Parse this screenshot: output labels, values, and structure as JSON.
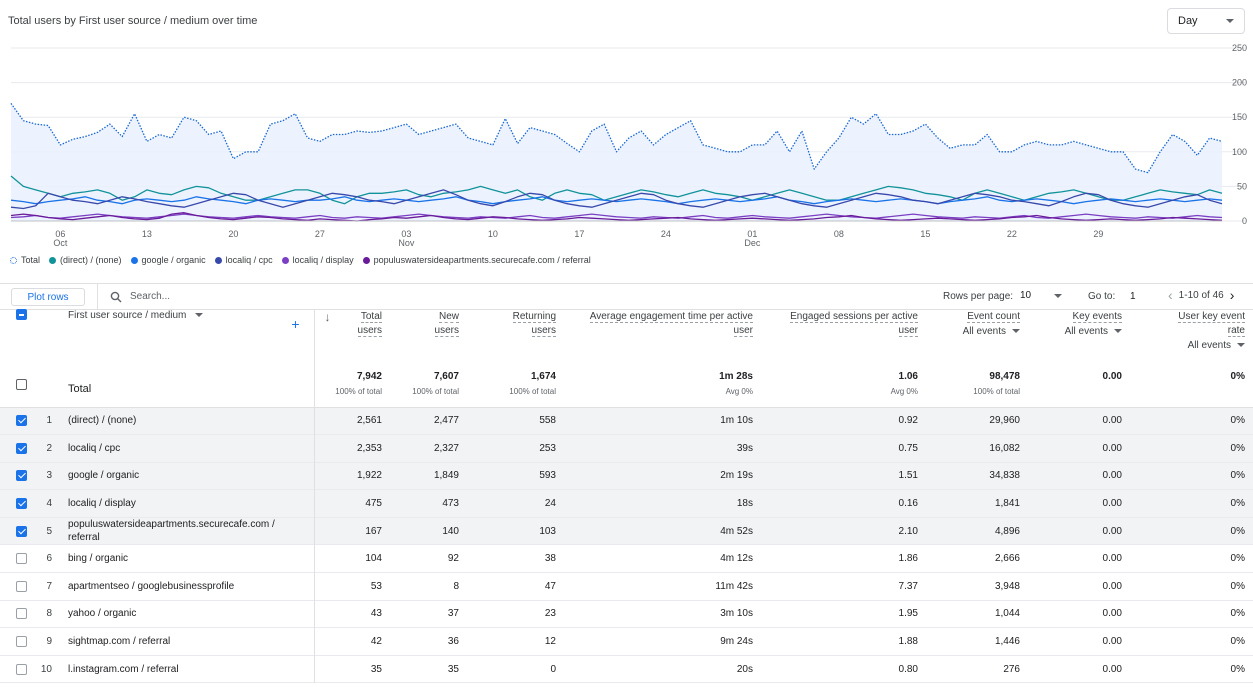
{
  "chart": {
    "title": "Total users by First user source / medium over time",
    "granularity": "Day",
    "x_ticks": [
      {
        "day": "06",
        "month": "Oct"
      },
      {
        "day": "13",
        "month": ""
      },
      {
        "day": "20",
        "month": ""
      },
      {
        "day": "27",
        "month": ""
      },
      {
        "day": "03",
        "month": "Nov"
      },
      {
        "day": "10",
        "month": ""
      },
      {
        "day": "17",
        "month": ""
      },
      {
        "day": "24",
        "month": ""
      },
      {
        "day": "01",
        "month": "Dec"
      },
      {
        "day": "08",
        "month": ""
      },
      {
        "day": "15",
        "month": ""
      },
      {
        "day": "22",
        "month": ""
      },
      {
        "day": "29",
        "month": ""
      }
    ],
    "y_ticks": [
      "250",
      "200",
      "150",
      "100",
      "50",
      "0"
    ]
  },
  "chart_data": {
    "type": "line",
    "ylim": [
      0,
      250
    ],
    "x_start": "Oct 02",
    "x_end": "Dec 31",
    "series": [
      {
        "name": "Total",
        "color": "#1967d2",
        "style": "dotted",
        "fill": true,
        "values": [
          170,
          145,
          140,
          138,
          110,
          118,
          122,
          128,
          140,
          122,
          155,
          115,
          125,
          120,
          150,
          145,
          125,
          130,
          90,
          100,
          100,
          140,
          145,
          155,
          120,
          115,
          125,
          125,
          130,
          128,
          130,
          135,
          140,
          125,
          130,
          135,
          140,
          120,
          115,
          110,
          148,
          112,
          135,
          130,
          125,
          112,
          100,
          130,
          140,
          100,
          120,
          130,
          110,
          125,
          135,
          145,
          110,
          105,
          100,
          100,
          110,
          110,
          130,
          100,
          130,
          75,
          100,
          120,
          150,
          140,
          155,
          125,
          125,
          130,
          140,
          120,
          105,
          110,
          110,
          125,
          100,
          100,
          110,
          115,
          110,
          110,
          115,
          110,
          105,
          100,
          100,
          75,
          70,
          100,
          125,
          115,
          95,
          120,
          115
        ]
      },
      {
        "name": "(direct) / (none)",
        "color": "#12939a",
        "style": "solid",
        "values": [
          65,
          50,
          45,
          40,
          35,
          40,
          42,
          45,
          40,
          30,
          35,
          45,
          40,
          38,
          45,
          50,
          48,
          40,
          35,
          30,
          30,
          35,
          40,
          45,
          45,
          40,
          30,
          25,
          35,
          40,
          40,
          42,
          45,
          38,
          35,
          40,
          42,
          45,
          50,
          45,
          40,
          45,
          35,
          30,
          40,
          45,
          40,
          38,
          30,
          35,
          40,
          45,
          42,
          38,
          35,
          40,
          45,
          40,
          38,
          35,
          30,
          35,
          40,
          45,
          40,
          35,
          30,
          30,
          35,
          40,
          45,
          50,
          48,
          45,
          40,
          38,
          35,
          30,
          40,
          45,
          40,
          35,
          30,
          35,
          40,
          42,
          45,
          40,
          35,
          30,
          30,
          35,
          40,
          45,
          42,
          40,
          38,
          45,
          40
        ]
      },
      {
        "name": "google / organic",
        "color": "#1a73e8",
        "style": "solid",
        "values": [
          30,
          28,
          25,
          28,
          30,
          32,
          35,
          30,
          28,
          25,
          30,
          32,
          30,
          28,
          30,
          35,
          32,
          30,
          28,
          25,
          30,
          32,
          30,
          28,
          30,
          30,
          32,
          35,
          30,
          28,
          30,
          32,
          30,
          28,
          30,
          32,
          35,
          30,
          28,
          25,
          28,
          30,
          32,
          35,
          30,
          28,
          30,
          32,
          30,
          28,
          30,
          32,
          30,
          28,
          25,
          28,
          30,
          32,
          30,
          28,
          30,
          32,
          35,
          30,
          28,
          25,
          28,
          30,
          32,
          30,
          28,
          30,
          32,
          30,
          28,
          25,
          28,
          30,
          32,
          35,
          30,
          28,
          30,
          32,
          30,
          28,
          25,
          28,
          30,
          32,
          30,
          28,
          30,
          32,
          30,
          28,
          30,
          32,
          30
        ]
      },
      {
        "name": "localiq / cpc",
        "color": "#3949ab",
        "style": "solid",
        "values": [
          20,
          18,
          22,
          40,
          35,
          30,
          28,
          25,
          30,
          35,
          32,
          28,
          25,
          22,
          20,
          25,
          30,
          35,
          40,
          38,
          30,
          25,
          20,
          25,
          30,
          35,
          40,
          38,
          35,
          30,
          28,
          25,
          30,
          35,
          40,
          45,
          38,
          30,
          25,
          22,
          28,
          35,
          40,
          38,
          30,
          25,
          22,
          20,
          25,
          30,
          35,
          40,
          38,
          30,
          25,
          22,
          20,
          25,
          30,
          35,
          38,
          40,
          35,
          30,
          25,
          22,
          20,
          25,
          30,
          35,
          40,
          38,
          35,
          30,
          28,
          25,
          30,
          35,
          40,
          38,
          35,
          30,
          28,
          25,
          22,
          28,
          35,
          40,
          38,
          30,
          25,
          22,
          20,
          25,
          30,
          35,
          38,
          30,
          25
        ]
      },
      {
        "name": "localiq / display",
        "color": "#7b3fc4",
        "style": "solid",
        "values": [
          5,
          6,
          8,
          5,
          4,
          6,
          8,
          10,
          8,
          6,
          5,
          4,
          6,
          8,
          10,
          8,
          6,
          5,
          4,
          6,
          8,
          6,
          5,
          4,
          6,
          8,
          5,
          4,
          6,
          5,
          4,
          6,
          8,
          10,
          8,
          6,
          5,
          4,
          6,
          5,
          4,
          6,
          8,
          5,
          4,
          6,
          8,
          10,
          8,
          6,
          5,
          4,
          6,
          5,
          4,
          6,
          8,
          5,
          4,
          6,
          8,
          6,
          5,
          4,
          6,
          8,
          10,
          8,
          6,
          5,
          4,
          6,
          8,
          10,
          8,
          6,
          5,
          4,
          6,
          5,
          4,
          6,
          8,
          5,
          4,
          6,
          8,
          10,
          8,
          6,
          5,
          4,
          6,
          5,
          4,
          6,
          8,
          6,
          5
        ]
      },
      {
        "name": "populuswatersideapartments.securecafe.com / referral",
        "color": "#6a1b9a",
        "style": "solid",
        "values": [
          8,
          10,
          8,
          5,
          3,
          2,
          4,
          6,
          8,
          5,
          3,
          2,
          4,
          10,
          12,
          8,
          5,
          3,
          2,
          4,
          6,
          5,
          3,
          2,
          1,
          3,
          2,
          1,
          0,
          2,
          3,
          5,
          4,
          6,
          8,
          5,
          3,
          2,
          4,
          6,
          5,
          3,
          2,
          1,
          2,
          3,
          5,
          4,
          3,
          2,
          1,
          2,
          3,
          4,
          5,
          3,
          2,
          1,
          2,
          3,
          4,
          3,
          2,
          1,
          2,
          3,
          5,
          6,
          8,
          5,
          3,
          2,
          1,
          2,
          3,
          4,
          3,
          2,
          1,
          2,
          3,
          5,
          6,
          8,
          5,
          3,
          2,
          1,
          2,
          3,
          2,
          1,
          2,
          3,
          5,
          4,
          3,
          2,
          1
        ]
      }
    ]
  },
  "toolbar": {
    "plot_rows_label": "Plot rows",
    "search_placeholder": "Search...",
    "rows_per_page_label": "Rows per page:",
    "rows_per_page_value": "10",
    "goto_label": "Go to:",
    "goto_value": "1",
    "page_range": "1-10 of 46"
  },
  "table": {
    "dimension_header": "First user source / medium",
    "columns": [
      {
        "line1": "Total",
        "line2": "users",
        "control": ""
      },
      {
        "line1": "New",
        "line2": "users",
        "control": ""
      },
      {
        "line1": "Returning",
        "line2": "users",
        "control": ""
      },
      {
        "line1": "Average engagement time per active",
        "line2": "user",
        "control": ""
      },
      {
        "line1": "Engaged sessions per active",
        "line2": "user",
        "control": ""
      },
      {
        "line1": "Event count",
        "line2": "",
        "control": "All events"
      },
      {
        "line1": "Key events",
        "line2": "",
        "control": "All events"
      },
      {
        "line1": "User key event",
        "line2": "rate",
        "control": "All events"
      }
    ],
    "total": {
      "label": "Total",
      "values": [
        "7,942",
        "7,607",
        "1,674",
        "1m 28s",
        "1.06",
        "98,478",
        "0.00",
        "0%"
      ],
      "subs": [
        "100% of total",
        "100% of total",
        "100% of total",
        "Avg 0%",
        "Avg 0%",
        "100% of total",
        "",
        ""
      ]
    },
    "rows": [
      {
        "idx": "1",
        "name": "(direct) / (none)",
        "checked": true,
        "values": [
          "2,561",
          "2,477",
          "558",
          "1m 10s",
          "0.92",
          "29,960",
          "0.00",
          "0%"
        ]
      },
      {
        "idx": "2",
        "name": "localiq / cpc",
        "checked": true,
        "values": [
          "2,353",
          "2,327",
          "253",
          "39s",
          "0.75",
          "16,082",
          "0.00",
          "0%"
        ]
      },
      {
        "idx": "3",
        "name": "google / organic",
        "checked": true,
        "values": [
          "1,922",
          "1,849",
          "593",
          "2m 19s",
          "1.51",
          "34,838",
          "0.00",
          "0%"
        ]
      },
      {
        "idx": "4",
        "name": "localiq / display",
        "checked": true,
        "values": [
          "475",
          "473",
          "24",
          "18s",
          "0.16",
          "1,841",
          "0.00",
          "0%"
        ]
      },
      {
        "idx": "5",
        "name": "populuswatersideapartments.securecafe.com / referral",
        "checked": true,
        "values": [
          "167",
          "140",
          "103",
          "4m 52s",
          "2.10",
          "4,896",
          "0.00",
          "0%"
        ]
      },
      {
        "idx": "6",
        "name": "bing / organic",
        "checked": false,
        "values": [
          "104",
          "92",
          "38",
          "4m 12s",
          "1.86",
          "2,666",
          "0.00",
          "0%"
        ]
      },
      {
        "idx": "7",
        "name": "apartmentseo / googlebusinessprofile",
        "checked": false,
        "values": [
          "53",
          "8",
          "47",
          "11m 42s",
          "7.37",
          "3,948",
          "0.00",
          "0%"
        ]
      },
      {
        "idx": "8",
        "name": "yahoo / organic",
        "checked": false,
        "values": [
          "43",
          "37",
          "23",
          "3m 10s",
          "1.95",
          "1,044",
          "0.00",
          "0%"
        ]
      },
      {
        "idx": "9",
        "name": "sightmap.com / referral",
        "checked": false,
        "values": [
          "42",
          "36",
          "12",
          "9m 24s",
          "1.88",
          "1,446",
          "0.00",
          "0%"
        ]
      },
      {
        "idx": "10",
        "name": "l.instagram.com / referral",
        "checked": false,
        "values": [
          "35",
          "35",
          "0",
          "20s",
          "0.80",
          "276",
          "0.00",
          "0%"
        ]
      }
    ]
  }
}
